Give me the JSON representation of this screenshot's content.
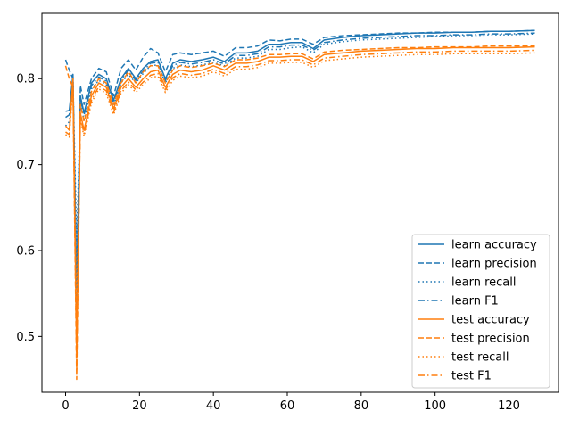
{
  "chart_data": {
    "type": "line",
    "title": "",
    "xlabel": "",
    "ylabel": "",
    "xlim": [
      -6.4,
      133.4
    ],
    "ylim": [
      0.435,
      0.876
    ],
    "xticks": [
      0,
      20,
      40,
      60,
      80,
      100,
      120
    ],
    "yticks": [
      0.5,
      0.6,
      0.7,
      0.8
    ],
    "grid": false,
    "legend_position": "lower-right",
    "x": [
      0,
      1,
      2,
      3,
      4,
      5,
      7,
      9,
      11,
      13,
      15,
      17,
      19,
      21,
      23,
      25,
      27,
      29,
      31,
      34,
      37,
      40,
      43,
      46,
      49,
      52,
      55,
      58,
      61,
      64,
      67,
      70,
      75,
      80,
      85,
      90,
      95,
      100,
      105,
      110,
      115,
      120,
      127
    ],
    "series": [
      {
        "name": "learn accuracy",
        "color": "#1f77b4",
        "linestyle": "solid",
        "values": [
          0.762,
          0.763,
          0.805,
          0.56,
          0.78,
          0.76,
          0.795,
          0.805,
          0.8,
          0.775,
          0.8,
          0.812,
          0.8,
          0.812,
          0.82,
          0.822,
          0.8,
          0.818,
          0.822,
          0.82,
          0.822,
          0.825,
          0.82,
          0.83,
          0.83,
          0.832,
          0.84,
          0.84,
          0.842,
          0.842,
          0.835,
          0.845,
          0.848,
          0.85,
          0.851,
          0.852,
          0.853,
          0.853,
          0.854,
          0.854,
          0.855,
          0.855,
          0.856
        ]
      },
      {
        "name": "learn precision",
        "color": "#1f77b4",
        "linestyle": "dashed",
        "values": [
          0.822,
          0.81,
          0.8,
          0.5,
          0.792,
          0.77,
          0.8,
          0.812,
          0.808,
          0.78,
          0.812,
          0.822,
          0.81,
          0.825,
          0.835,
          0.83,
          0.808,
          0.828,
          0.83,
          0.828,
          0.83,
          0.832,
          0.826,
          0.836,
          0.836,
          0.838,
          0.845,
          0.844,
          0.846,
          0.846,
          0.84,
          0.848,
          0.85,
          0.851,
          0.852,
          0.853,
          0.853,
          0.854,
          0.854,
          0.854,
          0.855,
          0.855,
          0.856
        ]
      },
      {
        "name": "learn recall",
        "color": "#1f77b4",
        "linestyle": "dotted",
        "values": [
          0.745,
          0.75,
          0.8,
          0.61,
          0.77,
          0.752,
          0.788,
          0.798,
          0.793,
          0.768,
          0.795,
          0.805,
          0.795,
          0.806,
          0.815,
          0.816,
          0.795,
          0.812,
          0.816,
          0.814,
          0.816,
          0.819,
          0.815,
          0.824,
          0.824,
          0.826,
          0.834,
          0.834,
          0.836,
          0.837,
          0.83,
          0.84,
          0.843,
          0.845,
          0.846,
          0.847,
          0.848,
          0.849,
          0.85,
          0.85,
          0.851,
          0.851,
          0.852
        ]
      },
      {
        "name": "learn F1",
        "color": "#1f77b4",
        "linestyle": "dashdot",
        "values": [
          0.755,
          0.758,
          0.802,
          0.53,
          0.776,
          0.758,
          0.792,
          0.802,
          0.797,
          0.772,
          0.798,
          0.81,
          0.798,
          0.809,
          0.818,
          0.819,
          0.798,
          0.815,
          0.819,
          0.817,
          0.819,
          0.822,
          0.817,
          0.827,
          0.827,
          0.829,
          0.837,
          0.837,
          0.839,
          0.839,
          0.833,
          0.842,
          0.845,
          0.847,
          0.848,
          0.849,
          0.85,
          0.85,
          0.851,
          0.851,
          0.852,
          0.852,
          0.853
        ]
      },
      {
        "name": "test accuracy",
        "color": "#ff7f0e",
        "linestyle": "solid",
        "values": [
          0.745,
          0.74,
          0.8,
          0.48,
          0.76,
          0.74,
          0.78,
          0.795,
          0.79,
          0.765,
          0.79,
          0.8,
          0.79,
          0.8,
          0.808,
          0.81,
          0.79,
          0.805,
          0.81,
          0.808,
          0.81,
          0.815,
          0.81,
          0.818,
          0.818,
          0.82,
          0.825,
          0.825,
          0.826,
          0.826,
          0.82,
          0.828,
          0.83,
          0.832,
          0.833,
          0.834,
          0.835,
          0.835,
          0.836,
          0.836,
          0.836,
          0.836,
          0.837
        ]
      },
      {
        "name": "test precision",
        "color": "#ff7f0e",
        "linestyle": "dashed",
        "values": [
          0.815,
          0.8,
          0.79,
          0.45,
          0.77,
          0.75,
          0.785,
          0.8,
          0.795,
          0.77,
          0.795,
          0.808,
          0.795,
          0.808,
          0.815,
          0.815,
          0.795,
          0.81,
          0.815,
          0.813,
          0.815,
          0.818,
          0.814,
          0.822,
          0.822,
          0.824,
          0.828,
          0.828,
          0.829,
          0.829,
          0.823,
          0.831,
          0.833,
          0.834,
          0.835,
          0.836,
          0.836,
          0.837,
          0.837,
          0.837,
          0.838,
          0.838,
          0.838
        ]
      },
      {
        "name": "test recall",
        "color": "#ff7f0e",
        "linestyle": "dotted",
        "values": [
          0.735,
          0.732,
          0.795,
          0.52,
          0.752,
          0.733,
          0.772,
          0.788,
          0.783,
          0.758,
          0.783,
          0.793,
          0.784,
          0.793,
          0.801,
          0.803,
          0.784,
          0.798,
          0.803,
          0.801,
          0.803,
          0.808,
          0.803,
          0.811,
          0.811,
          0.813,
          0.818,
          0.818,
          0.819,
          0.819,
          0.813,
          0.821,
          0.823,
          0.825,
          0.826,
          0.827,
          0.828,
          0.828,
          0.829,
          0.829,
          0.829,
          0.829,
          0.83
        ]
      },
      {
        "name": "test F1",
        "color": "#ff7f0e",
        "linestyle": "dashdot",
        "values": [
          0.738,
          0.735,
          0.797,
          0.46,
          0.755,
          0.736,
          0.775,
          0.791,
          0.786,
          0.761,
          0.786,
          0.796,
          0.787,
          0.796,
          0.804,
          0.806,
          0.787,
          0.801,
          0.806,
          0.804,
          0.806,
          0.811,
          0.806,
          0.814,
          0.814,
          0.816,
          0.821,
          0.821,
          0.822,
          0.822,
          0.816,
          0.824,
          0.826,
          0.828,
          0.829,
          0.83,
          0.831,
          0.831,
          0.832,
          0.832,
          0.832,
          0.832,
          0.833
        ]
      }
    ]
  }
}
